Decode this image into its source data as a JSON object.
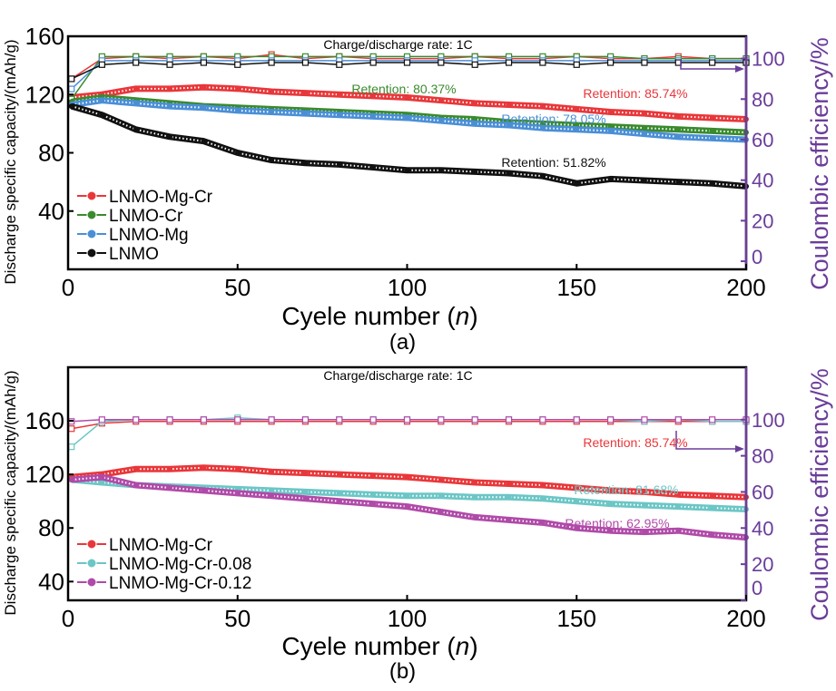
{
  "chart_data": [
    {
      "panel_label": "(a)",
      "type": "line",
      "annotation_top": "Charge/discharge rate: 1C",
      "xlabel": "Cyele number ",
      "xlabel_italic": "n",
      "ylabel": "Discharge specific capacity/(mAh/g)",
      "ylabel_right": "Coulombic efficiency/%",
      "xlim": [
        0,
        200
      ],
      "ylim": [
        0,
        160
      ],
      "ylim_right": [
        -4,
        111
      ],
      "xticks": [
        0,
        50,
        100,
        150,
        200
      ],
      "yticks": [
        40,
        80,
        120,
        160
      ],
      "yticks_right": [
        0,
        20,
        40,
        60,
        80,
        100
      ],
      "legend_position": "bottom-left",
      "x": [
        1,
        10,
        20,
        30,
        40,
        50,
        60,
        70,
        80,
        90,
        100,
        110,
        120,
        130,
        140,
        150,
        160,
        170,
        180,
        190,
        200
      ],
      "series": [
        {
          "name": "LNMO-Mg-Cr",
          "color": "#e8373a",
          "capacity": [
            118,
            120,
            124,
            124,
            125,
            124,
            122,
            121,
            120,
            119,
            118,
            116,
            114,
            113,
            112,
            110,
            108,
            107,
            105,
            104,
            103
          ],
          "efficiency": [
            90,
            100,
            101,
            100,
            101,
            100,
            102,
            100,
            101,
            100,
            100,
            100,
            101,
            100,
            100,
            101,
            100,
            100,
            101,
            100,
            100
          ],
          "retention": "Retention: 85.74%"
        },
        {
          "name": "LNMO-Cr",
          "color": "#3a8a2e",
          "capacity": [
            115,
            118,
            116,
            114,
            112,
            111,
            110,
            109,
            108,
            107,
            106,
            104,
            103,
            101,
            100,
            99,
            98,
            97,
            96,
            95,
            94
          ],
          "efficiency": [
            80,
            101,
            101,
            101,
            101,
            101,
            101,
            101,
            101,
            101,
            101,
            101,
            101,
            101,
            101,
            101,
            101,
            100,
            100,
            100,
            100
          ],
          "retention": "Retention: 80.37%"
        },
        {
          "name": "LNMO-Mg",
          "color": "#4a8fd6",
          "capacity": [
            113,
            116,
            114,
            112,
            111,
            109,
            108,
            107,
            106,
            105,
            104,
            102,
            100,
            99,
            97,
            96,
            95,
            93,
            91,
            90,
            89
          ],
          "efficiency": [
            85,
            99,
            99,
            99,
            99,
            99,
            99,
            99,
            99,
            99,
            99,
            99,
            99,
            99,
            99,
            99,
            99,
            99,
            99,
            99,
            99
          ],
          "retention": "Retention: 78.05%"
        },
        {
          "name": "LNMO",
          "color": "#111111",
          "capacity": [
            112,
            106,
            96,
            91,
            88,
            80,
            75,
            73,
            72,
            70,
            68,
            68,
            67,
            66,
            64,
            59,
            62,
            61,
            60,
            59,
            57
          ],
          "efficiency": [
            90,
            97,
            98,
            97,
            98,
            97,
            98,
            98,
            97,
            98,
            98,
            98,
            97,
            98,
            98,
            97,
            98,
            98,
            98,
            98,
            98
          ],
          "retention": "Retention: 51.82%"
        }
      ]
    },
    {
      "panel_label": "(b)",
      "type": "line",
      "annotation_top": "Charge/discharge rate: 1C",
      "xlabel": "Cyele number ",
      "xlabel_italic": "n",
      "ylabel": "Discharge specific capacity/(mAh/g)",
      "ylabel_right": "Coulombic efficiency/%",
      "xlim": [
        0,
        200
      ],
      "ylim": [
        26,
        200
      ],
      "ylim_right": [
        0,
        129
      ],
      "xticks": [
        0,
        50,
        100,
        150,
        200
      ],
      "yticks": [
        40,
        80,
        120,
        160
      ],
      "yticks_right": [
        0,
        20,
        40,
        60,
        80,
        100
      ],
      "legend_position": "bottom-left",
      "x": [
        1,
        10,
        20,
        30,
        40,
        50,
        60,
        70,
        80,
        90,
        100,
        110,
        120,
        130,
        140,
        150,
        160,
        170,
        180,
        190,
        200
      ],
      "series": [
        {
          "name": "LNMO-Mg-Cr",
          "color": "#e8373a",
          "capacity": [
            118,
            120,
            124,
            124,
            125,
            124,
            122,
            121,
            120,
            119,
            118,
            116,
            114,
            113,
            112,
            110,
            108,
            107,
            105,
            104,
            103
          ],
          "efficiency": [
            95,
            98,
            99,
            99,
            99,
            99,
            99,
            99,
            99,
            99,
            99,
            99,
            99,
            99,
            99,
            99,
            99,
            99,
            99,
            99,
            99
          ],
          "retention": "Retention: 85.74%"
        },
        {
          "name": "LNMO-Mg-Cr-0.08",
          "color": "#6cc6c6",
          "capacity": [
            116,
            114,
            112,
            111,
            110,
            109,
            108,
            107,
            106,
            105,
            104,
            104,
            103,
            103,
            102,
            100,
            98,
            97,
            96,
            95,
            94
          ],
          "efficiency": [
            85,
            99,
            100,
            100,
            100,
            101,
            100,
            100,
            100,
            100,
            100,
            100,
            100,
            100,
            100,
            100,
            100,
            99,
            100,
            99,
            99
          ],
          "retention": "Retention: 81.68%"
        },
        {
          "name": "LNMO-Mg-Cr-0.12",
          "color": "#b04aa8",
          "capacity": [
            116,
            118,
            112,
            110,
            108,
            106,
            104,
            102,
            100,
            98,
            96,
            92,
            88,
            86,
            84,
            80,
            78,
            77,
            78,
            75,
            73
          ],
          "efficiency": [
            99,
            100,
            100,
            100,
            100,
            100,
            100,
            100,
            100,
            100,
            100,
            100,
            100,
            100,
            100,
            100,
            100,
            100,
            100,
            100,
            100
          ],
          "retention": "Retention: 62.95%"
        }
      ]
    }
  ],
  "colors": {
    "axis": "#000000",
    "right_axis": "#6a3d9a"
  }
}
